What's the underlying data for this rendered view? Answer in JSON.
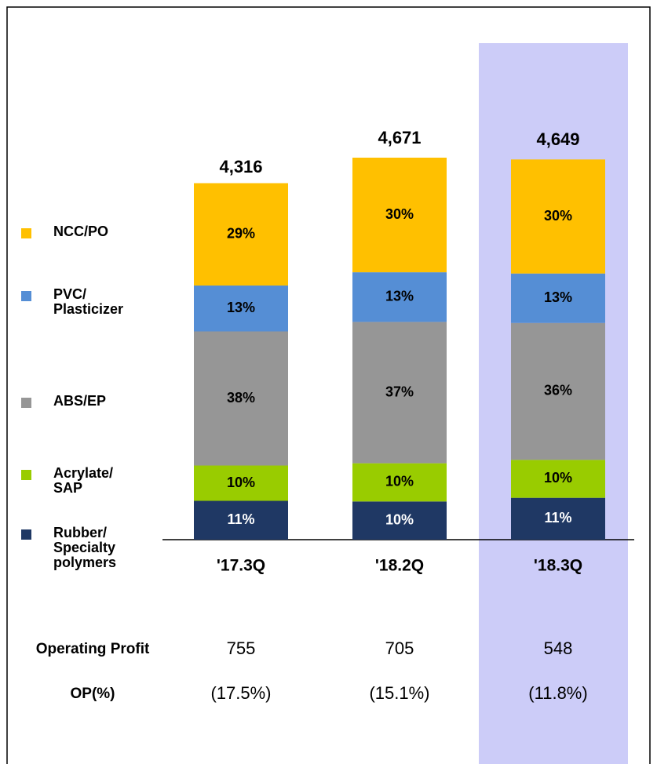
{
  "chart_data": {
    "type": "stacked_bar",
    "categories": [
      "'17.3Q",
      "'18.2Q",
      "'18.3Q"
    ],
    "totals": [
      {
        "value": 4316,
        "label": "4,316"
      },
      {
        "value": 4671,
        "label": "4,671"
      },
      {
        "value": 4649,
        "label": "4,649"
      }
    ],
    "series": [
      {
        "name": "Rubber/\nSpecialty\npolymers",
        "color": "#1f3864",
        "label_color": "#ffffff",
        "values": [
          11,
          10,
          11
        ],
        "value_labels": [
          "11%",
          "10%",
          "11%"
        ]
      },
      {
        "name": "Acrylate/\nSAP",
        "color": "#99cc00",
        "label_color": "#000000",
        "values": [
          10,
          10,
          10
        ],
        "value_labels": [
          "10%",
          "10%",
          "10%"
        ]
      },
      {
        "name": "ABS/EP",
        "color": "#969696",
        "label_color": "#000000",
        "values": [
          38,
          37,
          36
        ],
        "value_labels": [
          "38%",
          "37%",
          "36%"
        ]
      },
      {
        "name": "PVC/\nPlasticizer",
        "color": "#558ed5",
        "label_color": "#000000",
        "values": [
          13,
          13,
          13
        ],
        "value_labels": [
          "13%",
          "13%",
          "13%"
        ]
      },
      {
        "name": "NCC/PO",
        "color": "#ffc000",
        "label_color": "#000000",
        "values": [
          29,
          30,
          30
        ],
        "value_labels": [
          "29%",
          "30%",
          "30%"
        ]
      }
    ],
    "rows": [
      {
        "label": "Operating Profit",
        "values": [
          755,
          705,
          548
        ]
      },
      {
        "label": "OP(%)",
        "values": [
          17.5,
          15.1,
          11.8
        ],
        "value_labels": [
          "(17.5%)",
          "(15.1%)",
          "(11.8%)"
        ]
      }
    ]
  }
}
